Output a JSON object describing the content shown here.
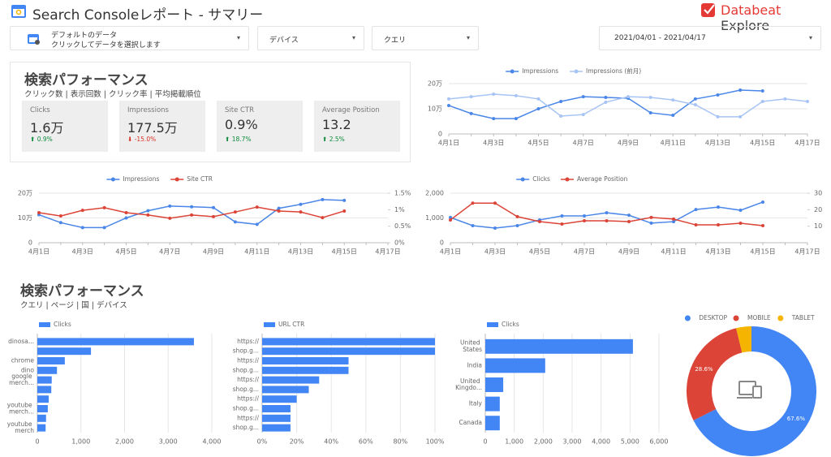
{
  "header": {
    "title": "Search Consoleレポート - サマリー",
    "logo": {
      "brand": "Databeat",
      "product": "Explore"
    }
  },
  "filters": {
    "data_source": {
      "title": "デフォルトのデータ",
      "hint": "クリックしてデータを選択します"
    },
    "device": "デバイス",
    "query": "クエリ",
    "date_range": "2021/04/01 - 2021/04/17"
  },
  "section1": {
    "title": "検索パフォーマンス",
    "subtitle": "クリック数 | 表示回数 | クリック率 | 平均掲載順位",
    "scorecards": [
      {
        "label": "Clicks",
        "value": "1.6万",
        "delta": "0.9%",
        "direction": "up"
      },
      {
        "label": "Impressions",
        "value": "177.5万",
        "delta": "-15.0%",
        "direction": "down"
      },
      {
        "label": "Site CTR",
        "value": "0.9%",
        "delta": "18.7%",
        "direction": "up"
      },
      {
        "label": "Average Position",
        "value": "13.2",
        "delta": "2.5%",
        "direction": "up"
      }
    ]
  },
  "section2": {
    "title": "検索パフォーマンス",
    "subtitle": "クエリ | ページ | 国 | デバイス"
  },
  "chart_data": [
    {
      "type": "line",
      "grid": true,
      "legend": "top",
      "categories": [
        "4月1日",
        null,
        "4月3日",
        null,
        "4月5日",
        null,
        "4月7日",
        null,
        "4月9日",
        null,
        "4月11日",
        null,
        "4月13日",
        null,
        "4月15日",
        null,
        "4月17日"
      ],
      "ylim": [
        0,
        200000
      ],
      "yticks": [
        0,
        {
          "value": 100000,
          "label": "10万"
        },
        {
          "value": 200000,
          "label": "20万"
        }
      ],
      "series": [
        {
          "name": "Impressions",
          "color": "#4a86e8",
          "values": [
            113000,
            81000,
            61000,
            61000,
            100000,
            129000,
            148000,
            145000,
            142000,
            84000,
            74000,
            139000,
            155000,
            174000,
            171000,
            null,
            null
          ]
        },
        {
          "name": "Impressions (前月)",
          "color": "#a8c4f4",
          "values": [
            139000,
            148000,
            158000,
            152000,
            139000,
            71000,
            77000,
            126000,
            148000,
            145000,
            135000,
            116000,
            68000,
            68000,
            129000,
            139000,
            129000
          ]
        }
      ]
    },
    {
      "type": "line",
      "grid": true,
      "legend": "top",
      "categories": [
        "4月1日",
        null,
        "4月3日",
        null,
        "4月5日",
        null,
        "4月7日",
        null,
        "4月9日",
        null,
        "4月11日",
        null,
        "4月13日",
        null,
        "4月15日",
        null,
        "4月17日"
      ],
      "ylim": [
        0,
        200000
      ],
      "yticks": [
        0,
        {
          "value": 100000,
          "label": "10万"
        },
        {
          "value": 200000,
          "label": "20万"
        }
      ],
      "y2lim": [
        0,
        1.5
      ],
      "y2ticks": [
        {
          "value": 0,
          "label": "0%"
        },
        {
          "value": 0.5,
          "label": "0.5%"
        },
        {
          "value": 1,
          "label": "1%"
        },
        {
          "value": 1.5,
          "label": "1.5%"
        }
      ],
      "series": [
        {
          "name": "Impressions",
          "color": "#4a86e8",
          "values": [
            113000,
            81000,
            61000,
            61000,
            100000,
            129000,
            148000,
            145000,
            142000,
            84000,
            74000,
            139000,
            155000,
            174000,
            171000,
            null,
            null
          ]
        },
        {
          "name": "Site CTR",
          "color": "#db4437",
          "axis": "y2",
          "values": [
            0.91,
            0.81,
            0.98,
            1.06,
            0.91,
            0.84,
            0.74,
            0.84,
            0.79,
            0.93,
            1.08,
            0.96,
            0.93,
            0.76,
            0.96,
            null,
            null
          ]
        }
      ]
    },
    {
      "type": "line",
      "grid": true,
      "legend": "top",
      "categories": [
        "4月1日",
        null,
        "4月3日",
        null,
        "4月5日",
        null,
        "4月7日",
        null,
        "4月9日",
        null,
        "4月11日",
        null,
        "4月13日",
        null,
        "4月15日",
        null,
        "4月17日"
      ],
      "ylim": [
        0,
        2000
      ],
      "yticks": [
        0,
        {
          "value": 1000,
          "label": "1,000"
        },
        {
          "value": 2000,
          "label": "2,000"
        }
      ],
      "y2lim": [
        0,
        30
      ],
      "y2ticks": [
        10,
        20,
        30
      ],
      "series": [
        {
          "name": "Clicks",
          "color": "#4a86e8",
          "values": [
            1020,
            690,
            590,
            690,
            920,
            1080,
            1080,
            1210,
            1110,
            790,
            850,
            1340,
            1440,
            1310,
            1640,
            null,
            null
          ]
        },
        {
          "name": "Average Position",
          "color": "#db4437",
          "axis": "y2",
          "values": [
            13.8,
            24,
            24,
            15.8,
            12.8,
            11.3,
            13.3,
            13.3,
            12.8,
            15.3,
            14.3,
            10.8,
            10.8,
            11.8,
            10.3,
            null,
            null
          ]
        }
      ]
    },
    {
      "type": "bar",
      "orientation": "horizontal",
      "grid": true,
      "legend": "top-left",
      "categories": [
        "dinosa...",
        null,
        "chrome",
        "dino",
        "google merch...",
        null,
        null,
        "youtube merch...",
        null,
        "youtube merch"
      ],
      "xlim": [
        0,
        4000
      ],
      "xticks": [
        0,
        {
          "value": 1000,
          "label": "1,000"
        },
        {
          "value": 2000,
          "label": "2,000"
        },
        {
          "value": 3000,
          "label": "3,000"
        },
        {
          "value": 4000,
          "label": "4,000"
        }
      ],
      "series": [
        {
          "name": "Clicks",
          "color": "#4285f4",
          "values": [
            3590,
            1230,
            630,
            450,
            330,
            320,
            260,
            240,
            200,
            190
          ]
        }
      ]
    },
    {
      "type": "bar",
      "orientation": "horizontal",
      "grid": true,
      "legend": "top-left",
      "categories": [
        "https://",
        "shop.g...",
        "https://",
        "shop.g...",
        "https://",
        "shop.g...",
        "https://",
        "shop.g...",
        "https://",
        "shop.g..."
      ],
      "xlim": [
        0,
        100
      ],
      "xticks": [
        {
          "value": 0,
          "label": "0%"
        },
        {
          "value": 20,
          "label": "20%"
        },
        {
          "value": 40,
          "label": "40%"
        },
        {
          "value": 60,
          "label": "60%"
        },
        {
          "value": 80,
          "label": "80%"
        },
        {
          "value": 100,
          "label": "100%"
        }
      ],
      "series": [
        {
          "name": "URL CTR",
          "color": "#4285f4",
          "values": [
            100,
            100,
            50,
            50,
            33,
            27,
            20,
            16.4,
            16.4,
            16.4
          ]
        }
      ]
    },
    {
      "type": "bar",
      "orientation": "horizontal",
      "grid": true,
      "legend": "top-left",
      "categories": [
        "United States",
        "India",
        "United Kingdo...",
        "Italy",
        "Canada"
      ],
      "xlim": [
        0,
        6000
      ],
      "xticks": [
        0,
        {
          "value": 1000,
          "label": "1,000"
        },
        {
          "value": 2000,
          "label": "2,000"
        },
        {
          "value": 3000,
          "label": "3,000"
        },
        {
          "value": 4000,
          "label": "4,000"
        },
        {
          "value": 5000,
          "label": "5,000"
        },
        {
          "value": 6000,
          "label": "6,000"
        }
      ],
      "series": [
        {
          "name": "Clicks",
          "color": "#4285f4",
          "values": [
            5100,
            2070,
            620,
            500,
            500
          ]
        }
      ]
    },
    {
      "type": "pie",
      "donut": true,
      "legend": "top",
      "categories": [
        "DESKTOP",
        "MOBILE",
        "TABLET"
      ],
      "values": [
        67.6,
        28.6,
        3.8
      ],
      "value_labels": [
        "67.6%",
        "28.6%",
        null
      ],
      "colors": [
        "#4285f4",
        "#db4437",
        "#f4b400"
      ]
    }
  ]
}
